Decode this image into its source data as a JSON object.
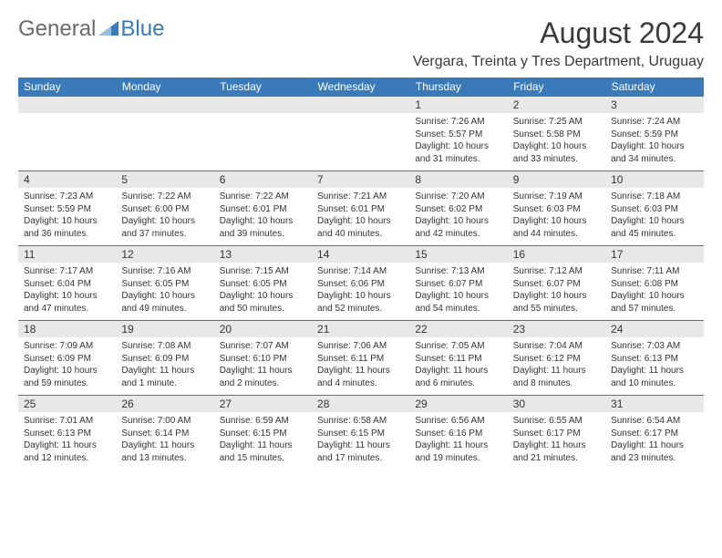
{
  "brand": {
    "part1": "General",
    "part2": "Blue"
  },
  "title": "August 2024",
  "location": "Vergara, Treinta y Tres Department, Uruguay",
  "headerColor": "#3a7ab8",
  "dayNames": [
    "Sunday",
    "Monday",
    "Tuesday",
    "Wednesday",
    "Thursday",
    "Friday",
    "Saturday"
  ],
  "weeks": [
    [
      null,
      null,
      null,
      null,
      {
        "d": "1",
        "sr": "7:26 AM",
        "ss": "5:57 PM",
        "dl": "10 hours and 31 minutes."
      },
      {
        "d": "2",
        "sr": "7:25 AM",
        "ss": "5:58 PM",
        "dl": "10 hours and 33 minutes."
      },
      {
        "d": "3",
        "sr": "7:24 AM",
        "ss": "5:59 PM",
        "dl": "10 hours and 34 minutes."
      }
    ],
    [
      {
        "d": "4",
        "sr": "7:23 AM",
        "ss": "5:59 PM",
        "dl": "10 hours and 36 minutes."
      },
      {
        "d": "5",
        "sr": "7:22 AM",
        "ss": "6:00 PM",
        "dl": "10 hours and 37 minutes."
      },
      {
        "d": "6",
        "sr": "7:22 AM",
        "ss": "6:01 PM",
        "dl": "10 hours and 39 minutes."
      },
      {
        "d": "7",
        "sr": "7:21 AM",
        "ss": "6:01 PM",
        "dl": "10 hours and 40 minutes."
      },
      {
        "d": "8",
        "sr": "7:20 AM",
        "ss": "6:02 PM",
        "dl": "10 hours and 42 minutes."
      },
      {
        "d": "9",
        "sr": "7:19 AM",
        "ss": "6:03 PM",
        "dl": "10 hours and 44 minutes."
      },
      {
        "d": "10",
        "sr": "7:18 AM",
        "ss": "6:03 PM",
        "dl": "10 hours and 45 minutes."
      }
    ],
    [
      {
        "d": "11",
        "sr": "7:17 AM",
        "ss": "6:04 PM",
        "dl": "10 hours and 47 minutes."
      },
      {
        "d": "12",
        "sr": "7:16 AM",
        "ss": "6:05 PM",
        "dl": "10 hours and 49 minutes."
      },
      {
        "d": "13",
        "sr": "7:15 AM",
        "ss": "6:05 PM",
        "dl": "10 hours and 50 minutes."
      },
      {
        "d": "14",
        "sr": "7:14 AM",
        "ss": "6:06 PM",
        "dl": "10 hours and 52 minutes."
      },
      {
        "d": "15",
        "sr": "7:13 AM",
        "ss": "6:07 PM",
        "dl": "10 hours and 54 minutes."
      },
      {
        "d": "16",
        "sr": "7:12 AM",
        "ss": "6:07 PM",
        "dl": "10 hours and 55 minutes."
      },
      {
        "d": "17",
        "sr": "7:11 AM",
        "ss": "6:08 PM",
        "dl": "10 hours and 57 minutes."
      }
    ],
    [
      {
        "d": "18",
        "sr": "7:09 AM",
        "ss": "6:09 PM",
        "dl": "10 hours and 59 minutes."
      },
      {
        "d": "19",
        "sr": "7:08 AM",
        "ss": "6:09 PM",
        "dl": "11 hours and 1 minute."
      },
      {
        "d": "20",
        "sr": "7:07 AM",
        "ss": "6:10 PM",
        "dl": "11 hours and 2 minutes."
      },
      {
        "d": "21",
        "sr": "7:06 AM",
        "ss": "6:11 PM",
        "dl": "11 hours and 4 minutes."
      },
      {
        "d": "22",
        "sr": "7:05 AM",
        "ss": "6:11 PM",
        "dl": "11 hours and 6 minutes."
      },
      {
        "d": "23",
        "sr": "7:04 AM",
        "ss": "6:12 PM",
        "dl": "11 hours and 8 minutes."
      },
      {
        "d": "24",
        "sr": "7:03 AM",
        "ss": "6:13 PM",
        "dl": "11 hours and 10 minutes."
      }
    ],
    [
      {
        "d": "25",
        "sr": "7:01 AM",
        "ss": "6:13 PM",
        "dl": "11 hours and 12 minutes."
      },
      {
        "d": "26",
        "sr": "7:00 AM",
        "ss": "6:14 PM",
        "dl": "11 hours and 13 minutes."
      },
      {
        "d": "27",
        "sr": "6:59 AM",
        "ss": "6:15 PM",
        "dl": "11 hours and 15 minutes."
      },
      {
        "d": "28",
        "sr": "6:58 AM",
        "ss": "6:15 PM",
        "dl": "11 hours and 17 minutes."
      },
      {
        "d": "29",
        "sr": "6:56 AM",
        "ss": "6:16 PM",
        "dl": "11 hours and 19 minutes."
      },
      {
        "d": "30",
        "sr": "6:55 AM",
        "ss": "6:17 PM",
        "dl": "11 hours and 21 minutes."
      },
      {
        "d": "31",
        "sr": "6:54 AM",
        "ss": "6:17 PM",
        "dl": "11 hours and 23 minutes."
      }
    ]
  ],
  "labels": {
    "sunrise": "Sunrise:",
    "sunset": "Sunset:",
    "daylight": "Daylight:"
  }
}
